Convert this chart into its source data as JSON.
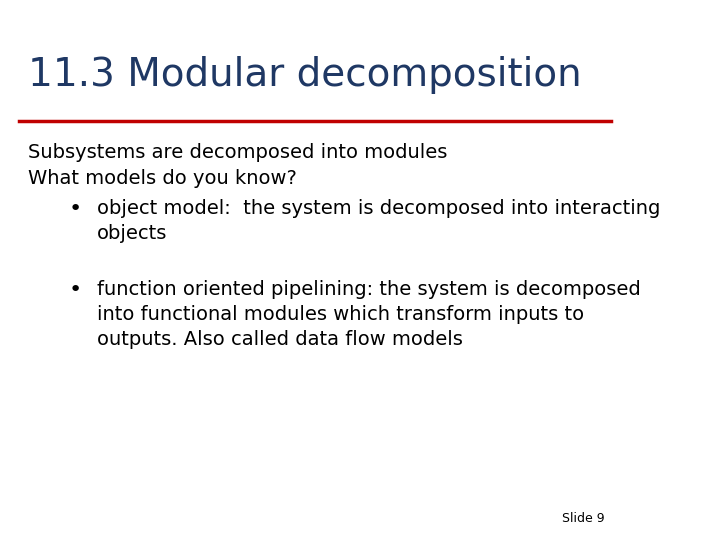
{
  "title": "11.3 Modular decomposition",
  "title_color": "#1F3864",
  "title_fontsize": 28,
  "line_color": "#C00000",
  "background_color": "#FFFFFF",
  "body_color": "#000000",
  "body_fontsize": 14,
  "line1": "Subsystems are decomposed into modules",
  "line2": "What models do you know?",
  "bullet1_text": "object model:  the system is decomposed into interacting\nobjects",
  "bullet2_text": "function oriented pipelining: the system is decomposed\ninto functional modules which transform inputs to\noutputs. Also called data flow models",
  "slide_label": "Slide 9"
}
